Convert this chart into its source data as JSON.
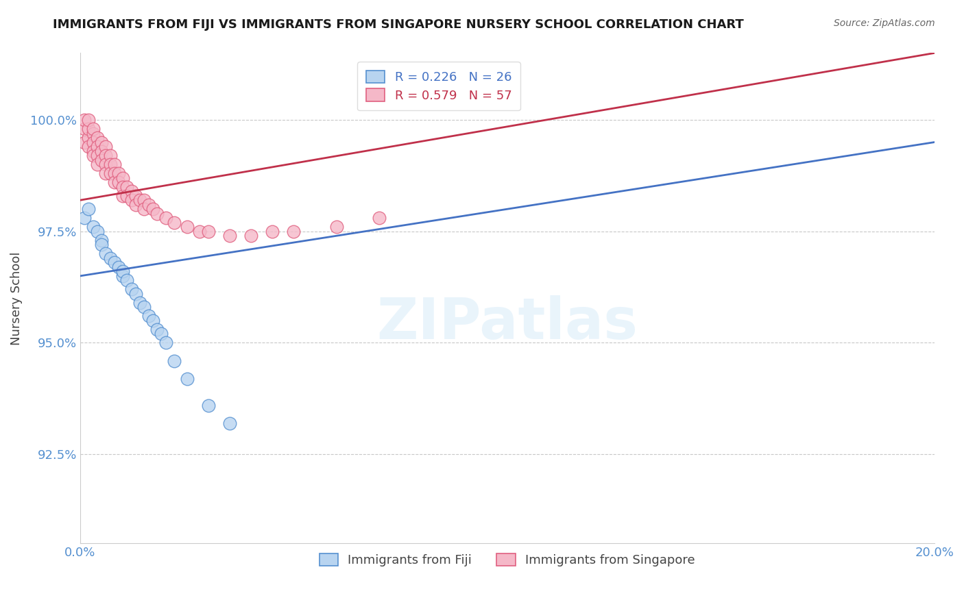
{
  "title": "IMMIGRANTS FROM FIJI VS IMMIGRANTS FROM SINGAPORE NURSERY SCHOOL CORRELATION CHART",
  "source": "Source: ZipAtlas.com",
  "ylabel": "Nursery School",
  "xlim": [
    0.0,
    0.2
  ],
  "ylim": [
    90.5,
    101.5
  ],
  "fiji_color": "#b8d4f0",
  "fiji_edge_color": "#5590d0",
  "singapore_color": "#f5b8c8",
  "singapore_edge_color": "#e06080",
  "fiji_line_color": "#4472c4",
  "singapore_line_color": "#c0304a",
  "grid_color": "#c8c8c8",
  "tick_color": "#5590d0",
  "legend_fiji_label": "R = 0.226   N = 26",
  "legend_singapore_label": "R = 0.579   N = 57",
  "legend_bottom_fiji": "Immigrants from Fiji",
  "legend_bottom_singapore": "Immigrants from Singapore",
  "fiji_scatter_x": [
    0.001,
    0.002,
    0.003,
    0.004,
    0.005,
    0.005,
    0.006,
    0.007,
    0.008,
    0.009,
    0.01,
    0.01,
    0.011,
    0.012,
    0.013,
    0.014,
    0.015,
    0.016,
    0.017,
    0.018,
    0.019,
    0.02,
    0.022,
    0.025,
    0.03,
    0.035
  ],
  "fiji_scatter_y": [
    97.8,
    98.0,
    97.6,
    97.5,
    97.3,
    97.2,
    97.0,
    96.9,
    96.8,
    96.7,
    96.5,
    96.6,
    96.4,
    96.2,
    96.1,
    95.9,
    95.8,
    95.6,
    95.5,
    95.3,
    95.2,
    95.0,
    94.6,
    94.2,
    93.6,
    93.2
  ],
  "singapore_scatter_x": [
    0.001,
    0.001,
    0.001,
    0.002,
    0.002,
    0.002,
    0.002,
    0.003,
    0.003,
    0.003,
    0.003,
    0.003,
    0.004,
    0.004,
    0.004,
    0.004,
    0.005,
    0.005,
    0.005,
    0.006,
    0.006,
    0.006,
    0.006,
    0.007,
    0.007,
    0.007,
    0.008,
    0.008,
    0.008,
    0.009,
    0.009,
    0.01,
    0.01,
    0.01,
    0.011,
    0.011,
    0.012,
    0.012,
    0.013,
    0.013,
    0.014,
    0.015,
    0.015,
    0.016,
    0.017,
    0.018,
    0.02,
    0.022,
    0.025,
    0.028,
    0.03,
    0.035,
    0.04,
    0.045,
    0.05,
    0.06,
    0.07
  ],
  "singapore_scatter_y": [
    99.8,
    99.5,
    100.0,
    99.6,
    99.8,
    100.0,
    99.4,
    99.7,
    99.5,
    99.3,
    99.8,
    99.2,
    99.6,
    99.4,
    99.2,
    99.0,
    99.5,
    99.3,
    99.1,
    99.4,
    99.2,
    99.0,
    98.8,
    99.2,
    99.0,
    98.8,
    99.0,
    98.8,
    98.6,
    98.8,
    98.6,
    98.7,
    98.5,
    98.3,
    98.5,
    98.3,
    98.4,
    98.2,
    98.3,
    98.1,
    98.2,
    98.2,
    98.0,
    98.1,
    98.0,
    97.9,
    97.8,
    97.7,
    97.6,
    97.5,
    97.5,
    97.4,
    97.4,
    97.5,
    97.5,
    97.6,
    97.8
  ],
  "ytick_positions": [
    92.5,
    95.0,
    97.5,
    100.0
  ],
  "ytick_labels": [
    "92.5%",
    "95.0%",
    "97.5%",
    "100.0%"
  ]
}
